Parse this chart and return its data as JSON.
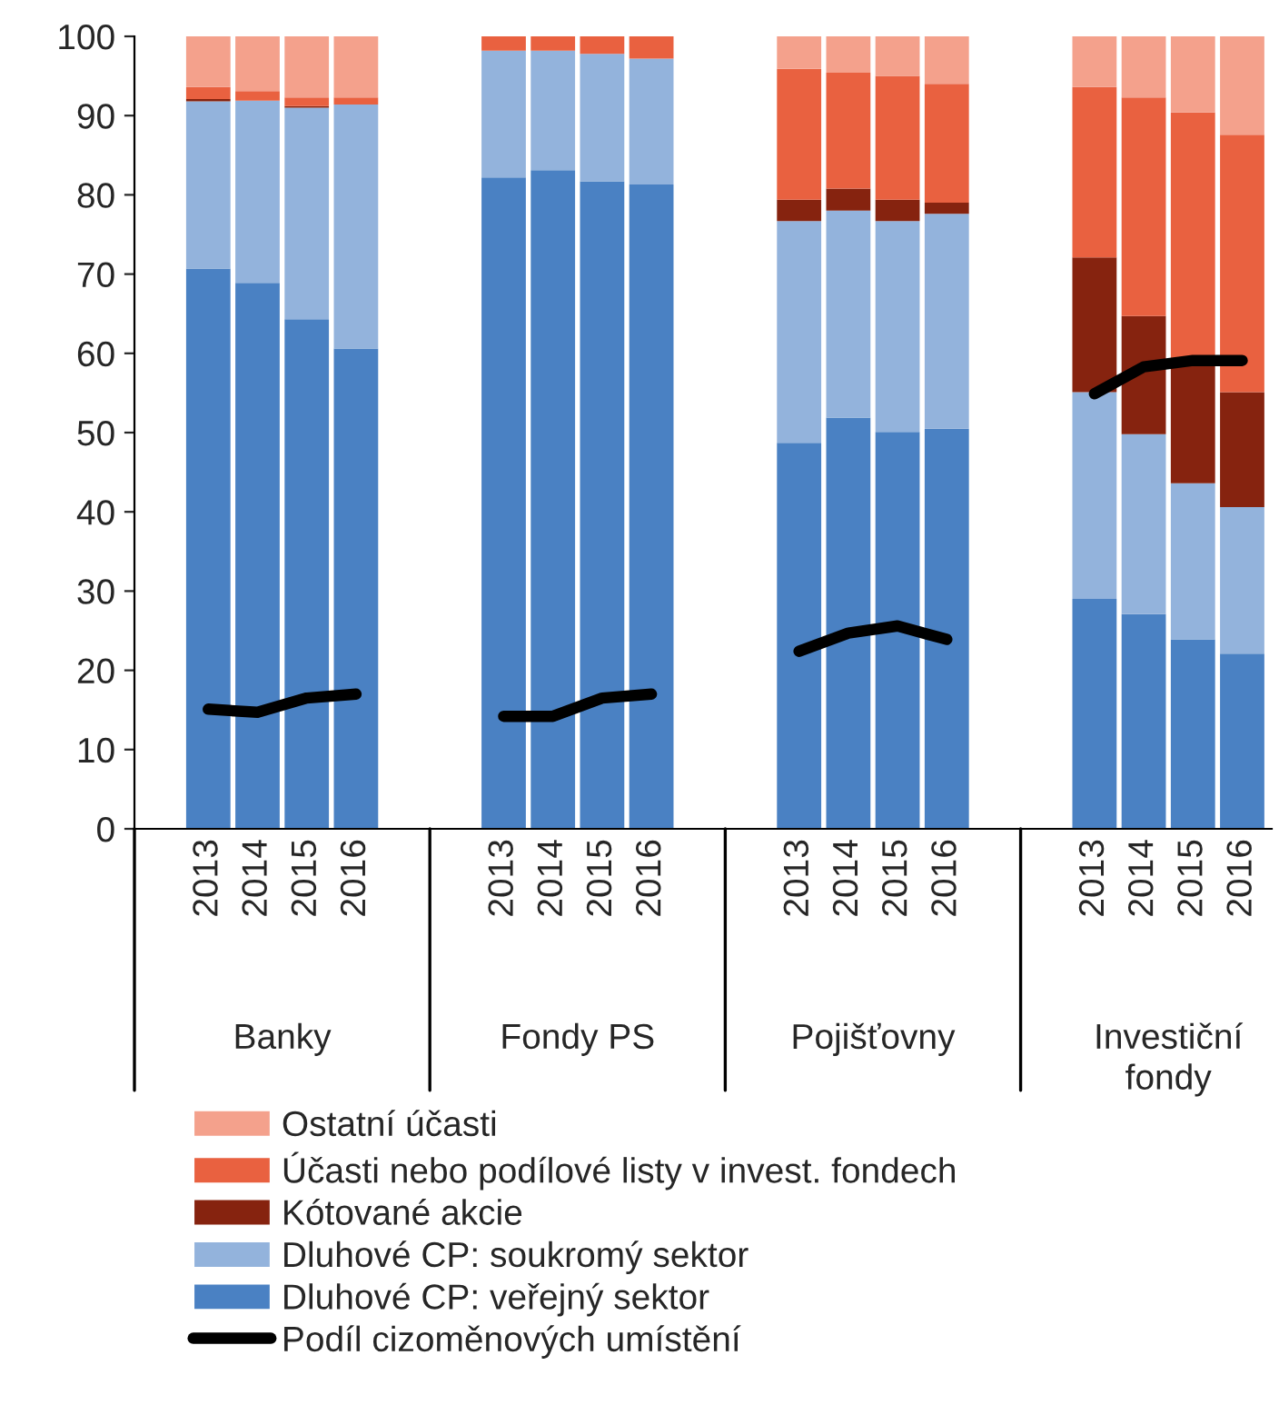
{
  "chart_data": {
    "type": "bar",
    "stacked": true,
    "categories": [
      "2013",
      "2014",
      "2015",
      "2016",
      null,
      null,
      "2013",
      "2014",
      "2015",
      "2016",
      null,
      null,
      "2013",
      "2014",
      "2015",
      "2016",
      null,
      null,
      "2013",
      "2014",
      "2015",
      "2016"
    ],
    "series": [
      {
        "name": "Dluhové CP: veřejný sektor",
        "color": "#4a81c3",
        "values": [
          70.7,
          68.9,
          64.3,
          60.6,
          null,
          null,
          82.2,
          83.1,
          81.7,
          81.3,
          null,
          null,
          48.7,
          51.9,
          50.1,
          50.5,
          null,
          null,
          29.0,
          27.1,
          23.9,
          22.1
        ]
      },
      {
        "name": "Dluhové CP: soukromý sektor",
        "color": "#93b3dc",
        "values": [
          21.1,
          23.0,
          26.7,
          30.8,
          null,
          null,
          16.0,
          15.1,
          16.1,
          15.9,
          null,
          null,
          28.0,
          26.1,
          26.6,
          27.1,
          null,
          null,
          26.1,
          22.7,
          19.7,
          18.5
        ]
      },
      {
        "name": "Kótované akcie",
        "color": "#86230f",
        "values": [
          0.3,
          0,
          0.2,
          0,
          null,
          null,
          0,
          0,
          0,
          0,
          null,
          null,
          2.7,
          2.8,
          2.7,
          1.4,
          null,
          null,
          17.0,
          14.9,
          15.4,
          14.5
        ]
      },
      {
        "name": "Účasti nebo podílové listy v invest. fondech",
        "color": "#e96140",
        "values": [
          1.5,
          1.2,
          1.1,
          0.9,
          null,
          null,
          1.8,
          1.8,
          2.2,
          2.8,
          null,
          null,
          16.5,
          14.6,
          15.6,
          15.0,
          null,
          null,
          21.5,
          27.6,
          31.4,
          32.5
        ]
      },
      {
        "name": "Ostatní účasti",
        "color": "#f4a18c",
        "values": [
          6.4,
          6.9,
          7.7,
          7.7,
          null,
          null,
          0,
          0,
          0,
          0,
          null,
          null,
          4.1,
          4.6,
          5.0,
          6.0,
          null,
          null,
          6.4,
          7.7,
          9.6,
          12.4
        ]
      },
      {
        "name": "Podíl cizoměnových umístění",
        "type": "line",
        "color": "#000000",
        "values": [
          15.1,
          14.7,
          16.5,
          17.0,
          null,
          null,
          14.2,
          14.2,
          16.5,
          17.0,
          null,
          null,
          22.4,
          24.7,
          25.6,
          23.9,
          null,
          null,
          54.9,
          58.3,
          59.1,
          59.1
        ]
      }
    ],
    "ylim": [
      0,
      100
    ],
    "yticks": [
      0,
      10,
      20,
      30,
      40,
      50,
      60,
      70,
      80,
      90,
      100
    ],
    "grid": false,
    "legend": "bottom",
    "annotations": [
      "Banky",
      "Fondy PS",
      "Pojišťovny",
      "Investiční\nfondy"
    ]
  }
}
